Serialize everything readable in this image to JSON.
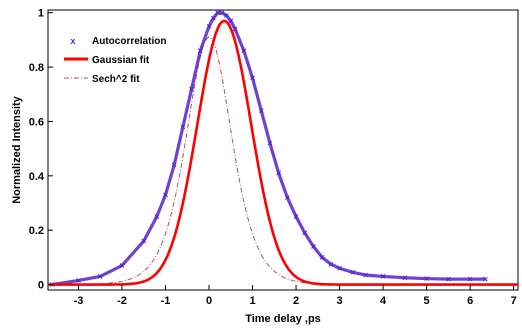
{
  "chart_data": {
    "type": "line",
    "xlabel": "Time delay ,ps",
    "ylabel": "Normalized Intensity",
    "xlim": [
      -3.7,
      7.1
    ],
    "ylim": [
      -0.02,
      1.01
    ],
    "grid": false,
    "legend_position": "top-left",
    "x_ticks": [
      -3,
      -2,
      -1,
      0,
      1,
      2,
      3,
      4,
      5,
      6,
      7
    ],
    "y_ticks": [
      0,
      0.2,
      0.4,
      0.6,
      0.8,
      1
    ],
    "x_tick_labels": [
      "-3",
      "-2",
      "-1",
      "0",
      "1",
      "2",
      "3",
      "4",
      "5",
      "6",
      "7"
    ],
    "y_tick_labels": [
      "0",
      "0.2",
      "0.4",
      "0.6",
      "0.8",
      "1"
    ],
    "series": [
      {
        "name": "Autocorrelation",
        "style": "markers",
        "marker": "x",
        "color": "#5522cc",
        "x": [
          -3.6,
          -3.0,
          -2.5,
          -2.0,
          -1.5,
          -1.2,
          -1.0,
          -0.8,
          -0.6,
          -0.4,
          -0.2,
          0.0,
          0.1,
          0.2,
          0.3,
          0.4,
          0.5,
          0.6,
          0.8,
          1.0,
          1.2,
          1.4,
          1.6,
          1.8,
          2.0,
          2.2,
          2.4,
          2.6,
          2.8,
          3.0,
          3.3,
          3.6,
          4.0,
          4.5,
          5.0,
          5.5,
          6.0,
          6.35
        ],
        "y": [
          0.0,
          0.015,
          0.03,
          0.07,
          0.16,
          0.25,
          0.33,
          0.44,
          0.58,
          0.72,
          0.86,
          0.95,
          0.98,
          1.0,
          1.0,
          0.99,
          0.97,
          0.94,
          0.86,
          0.76,
          0.64,
          0.52,
          0.41,
          0.32,
          0.25,
          0.19,
          0.14,
          0.1,
          0.075,
          0.06,
          0.045,
          0.035,
          0.03,
          0.025,
          0.022,
          0.02,
          0.02,
          0.02
        ]
      },
      {
        "name": "Gaussian fit",
        "style": "solid",
        "color": "#ff0000",
        "mu": 0.35,
        "amplitude": 0.97,
        "sigma": 0.62
      },
      {
        "name": "Sech^2 fit",
        "style": "dashdot",
        "color": "#a05a5a",
        "mu": 0.0,
        "amplitude": 0.91,
        "width": 0.7
      }
    ]
  }
}
